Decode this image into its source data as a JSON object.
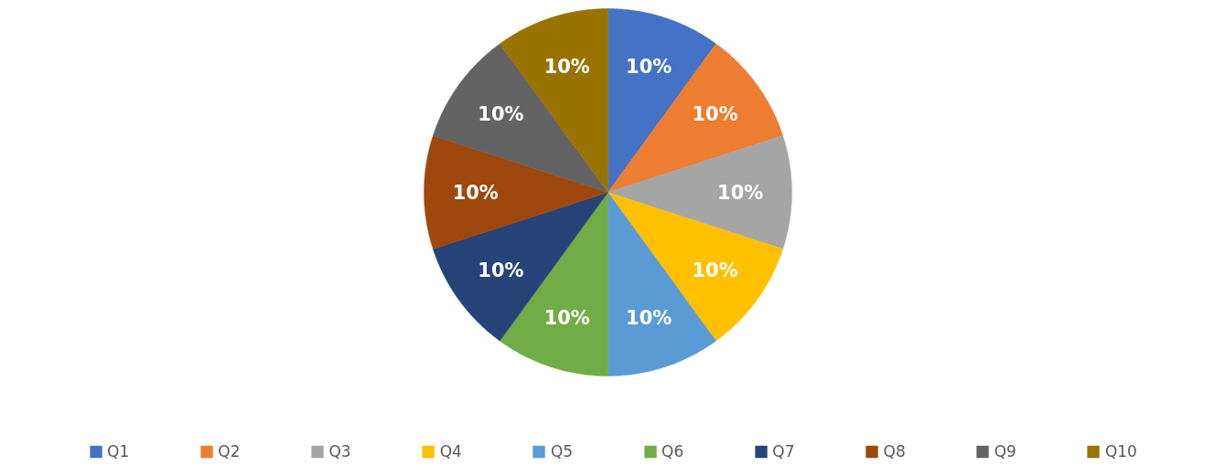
{
  "chart_data": {
    "type": "pie",
    "categories": [
      "Q1",
      "Q2",
      "Q3",
      "Q4",
      "Q5",
      "Q6",
      "Q7",
      "Q8",
      "Q9",
      "Q10"
    ],
    "values": [
      10,
      10,
      10,
      10,
      10,
      10,
      10,
      10,
      10,
      10
    ],
    "colors": [
      "#4472c4",
      "#ed7d31",
      "#a5a5a5",
      "#ffc000",
      "#5b9bd5",
      "#70ad47",
      "#264478",
      "#9e480e",
      "#636363",
      "#997300"
    ],
    "value_labels": [
      "10%",
      "10%",
      "10%",
      "10%",
      "10%",
      "10%",
      "10%",
      "10%",
      "10%",
      "10%"
    ],
    "legend": "bottom"
  }
}
